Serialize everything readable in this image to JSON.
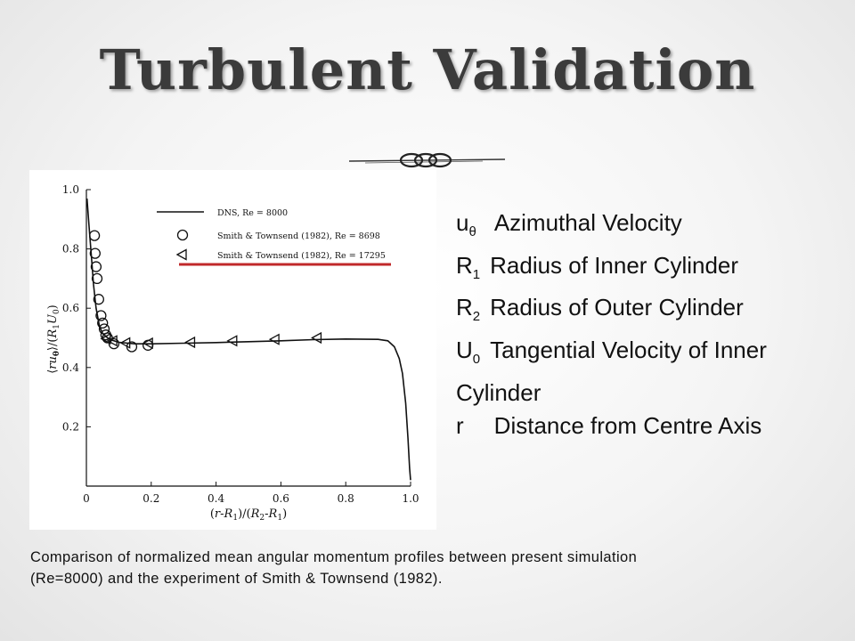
{
  "slide": {
    "title": "Turbulent  Validation"
  },
  "variables": [
    {
      "symbol": "u",
      "subscript": "θ",
      "description": "Azimuthal Velocity"
    },
    {
      "symbol": "R",
      "subscript": "1",
      "description": "Radius of Inner Cylinder"
    },
    {
      "symbol": "R",
      "subscript": "2",
      "description": "Radius of Outer Cylinder"
    },
    {
      "symbol": "U",
      "subscript": "0",
      "description": "Tangential Velocity of Inner Cylinder"
    },
    {
      "symbol": "r",
      "subscript": "",
      "description": "Distance from Centre Axis"
    }
  ],
  "caption": "Comparison of normalized mean angular momentum profiles between present simulation (Re=8000) and the experiment of Smith & Townsend (1982).",
  "colors": {
    "title": "#3b3b3b",
    "highlight_underline": "#c0282a",
    "plot_ink": "#111111"
  },
  "chart_data": {
    "type": "line",
    "xlabel": "(r-R1)/(R2-R1)",
    "ylabel": "⟨ruθ⟩/(R1U0)",
    "xlim": [
      0,
      1.0
    ],
    "ylim": [
      0,
      1.0
    ],
    "xticks": [
      "0",
      "0.2",
      "0.4",
      "0.6",
      "0.8",
      "1.0"
    ],
    "yticks": [
      "0.2",
      "0.4",
      "0.6",
      "0.8",
      "1.0"
    ],
    "grid": false,
    "legend_position": "top-right",
    "series": [
      {
        "name": "DNS, Re = 8000",
        "marker": "line",
        "points": [
          [
            0.002,
            0.97
          ],
          [
            0.008,
            0.88
          ],
          [
            0.015,
            0.78
          ],
          [
            0.022,
            0.68
          ],
          [
            0.03,
            0.6
          ],
          [
            0.04,
            0.54
          ],
          [
            0.05,
            0.515
          ],
          [
            0.065,
            0.5
          ],
          [
            0.08,
            0.492
          ],
          [
            0.1,
            0.485
          ],
          [
            0.15,
            0.48
          ],
          [
            0.2,
            0.48
          ],
          [
            0.3,
            0.482
          ],
          [
            0.4,
            0.484
          ],
          [
            0.5,
            0.487
          ],
          [
            0.6,
            0.49
          ],
          [
            0.7,
            0.494
          ],
          [
            0.8,
            0.496
          ],
          [
            0.9,
            0.495
          ],
          [
            0.93,
            0.49
          ],
          [
            0.95,
            0.47
          ],
          [
            0.965,
            0.43
          ],
          [
            0.975,
            0.38
          ],
          [
            0.985,
            0.28
          ],
          [
            0.992,
            0.16
          ],
          [
            0.997,
            0.06
          ],
          [
            1.0,
            0.02
          ]
        ]
      },
      {
        "name": "Smith & Townsend (1982), Re = 8698",
        "marker": "circle",
        "points": [
          [
            0.025,
            0.845
          ],
          [
            0.027,
            0.785
          ],
          [
            0.03,
            0.74
          ],
          [
            0.033,
            0.7
          ],
          [
            0.038,
            0.63
          ],
          [
            0.045,
            0.575
          ],
          [
            0.05,
            0.55
          ],
          [
            0.055,
            0.53
          ],
          [
            0.06,
            0.51
          ],
          [
            0.065,
            0.5
          ],
          [
            0.085,
            0.48
          ],
          [
            0.14,
            0.47
          ],
          [
            0.19,
            0.475
          ]
        ]
      },
      {
        "name": "Smith & Townsend (1982), Re = 17295",
        "marker": "triangle-left",
        "points": [
          [
            0.06,
            0.497
          ],
          [
            0.08,
            0.49
          ],
          [
            0.12,
            0.483
          ],
          [
            0.19,
            0.482
          ],
          [
            0.32,
            0.485
          ],
          [
            0.45,
            0.49
          ],
          [
            0.58,
            0.495
          ],
          [
            0.71,
            0.5
          ]
        ]
      }
    ]
  }
}
